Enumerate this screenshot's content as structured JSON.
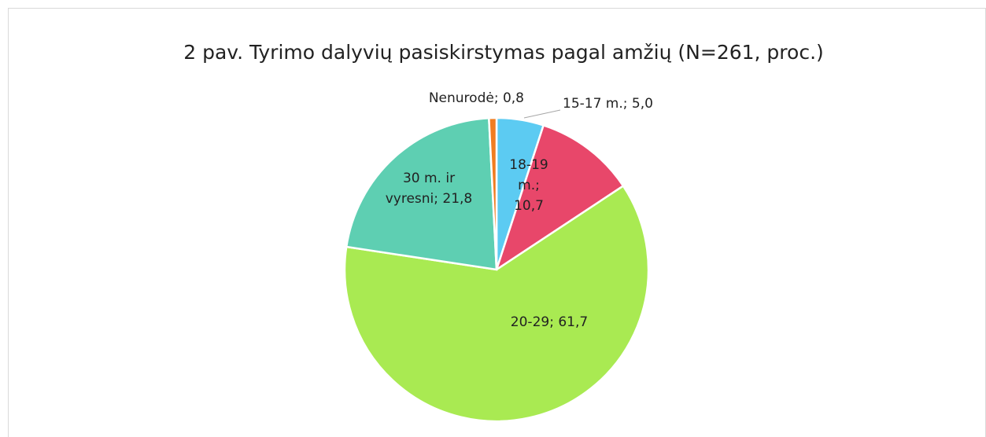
{
  "chart_data": {
    "type": "pie",
    "title": "2 pav. Tyrimo dalyvių pasiskirstymas pagal amžių (N=261, proc.)",
    "values": [
      5.0,
      10.7,
      61.7,
      21.8,
      0.8
    ],
    "value_labels": [
      "15-17 m.; 5,0",
      "18-19 m.; 10,7",
      "20-29; 61,7",
      "30 m. ir vyresni; 21,8",
      "Nenurodė; 0,8"
    ],
    "colors": [
      "#5ccbf2",
      "#e8476a",
      "#a9ea52",
      "#5ecfb2",
      "#f07d22"
    ]
  }
}
